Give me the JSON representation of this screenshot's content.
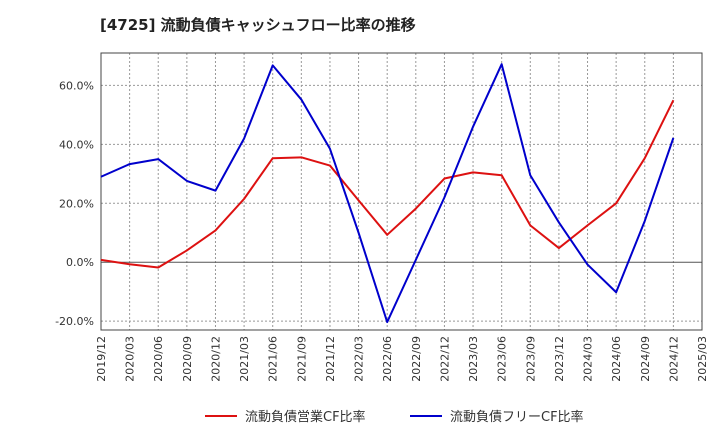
{
  "chart_data": {
    "type": "line",
    "title": "[4725]  流動負債キャッシュフロー比率の推移",
    "x": [
      "2019/12",
      "2020/03",
      "2020/06",
      "2020/09",
      "2020/12",
      "2021/03",
      "2021/06",
      "2021/09",
      "2021/12",
      "2022/03",
      "2022/06",
      "2022/09",
      "2022/12",
      "2023/03",
      "2023/06",
      "2023/09",
      "2023/12",
      "2024/03",
      "2024/06",
      "2024/09",
      "2024/12"
    ],
    "x_ticks": [
      "2019/12",
      "2020/03",
      "2020/06",
      "2020/09",
      "2020/12",
      "2021/03",
      "2021/06",
      "2021/09",
      "2021/12",
      "2022/03",
      "2022/06",
      "2022/09",
      "2022/12",
      "2023/03",
      "2023/06",
      "2023/09",
      "2023/12",
      "2024/03",
      "2024/06",
      "2024/09",
      "2024/12",
      "2025/03"
    ],
    "y_ticks": [
      "-20.0%",
      "0.0%",
      "20.0%",
      "40.0%",
      "60.0%"
    ],
    "y_tick_values": [
      -20,
      0,
      20,
      40,
      60
    ],
    "ylim": [
      -23,
      71
    ],
    "xlabel": "",
    "ylabel": "",
    "grid": true,
    "legend_position": "bottom",
    "series": [
      {
        "name": "流動負債営業CF比率",
        "color": "#dd1111",
        "values": [
          0.8,
          -0.7,
          -1.8,
          4.0,
          10.8,
          21.5,
          35.3,
          35.6,
          32.8,
          21.0,
          9.3,
          18.2,
          28.4,
          30.5,
          29.5,
          12.5,
          4.8,
          12.5,
          20.0,
          35.3,
          55.0
        ]
      },
      {
        "name": "流動負債フリーCF比率",
        "color": "#0000cc",
        "values": [
          29.0,
          33.3,
          35.0,
          27.6,
          24.3,
          42.0,
          66.8,
          55.2,
          38.5,
          10.0,
          -20.3,
          0.8,
          22.0,
          46.0,
          67.2,
          29.5,
          13.5,
          -0.8,
          -10.2,
          14.0,
          42.2
        ]
      }
    ]
  }
}
